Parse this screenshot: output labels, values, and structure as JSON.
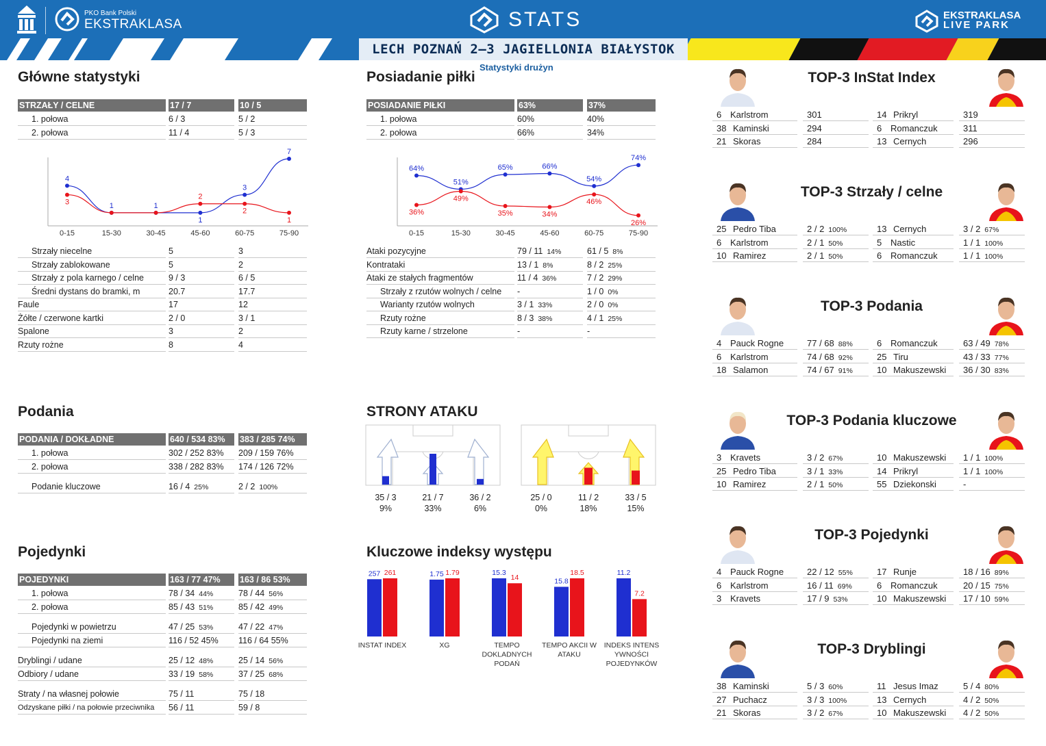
{
  "header": {
    "sponsor": "PKO Bank Polski",
    "league": "EKSTRAKLASA",
    "stats_title": "STATS",
    "liveparks_line1": "EKSTRAKLASA",
    "liveparks_line2": "LIVE PARK",
    "match": "LECH POZNAŃ 2–3 JAGIELLONIA BIAŁYSTOK",
    "subtitle": "Statystyki drużyn",
    "colors": {
      "home": "#1f2fd0",
      "away": "#e8141b",
      "brand": "#1c6fb8"
    }
  },
  "main_stats": {
    "title": "Główne statystyki",
    "header": [
      "STRZAŁY / CELNE",
      "17 / 7",
      "10 / 5"
    ],
    "halves": [
      [
        "1. połowa",
        "6 / 3",
        "5 / 2"
      ],
      [
        "2. połowa",
        "11 / 4",
        "5 / 3"
      ]
    ],
    "rows": [
      [
        "Strzały niecelne",
        "5",
        "3",
        true
      ],
      [
        "Strzały zablokowane",
        "5",
        "2",
        true
      ],
      [
        "Strzały z pola karnego / celne",
        "9 / 3",
        "6 / 5",
        true
      ],
      [
        "Średni dystans do bramki, m",
        "20.7",
        "17.7",
        true
      ],
      [
        "Faule",
        "17",
        "12",
        false
      ],
      [
        "Żółte / czerwone kartki",
        "2 / 0",
        "3 / 1",
        false
      ],
      [
        "Spalone",
        "3",
        "2",
        false
      ],
      [
        "Rzuty rożne",
        "8",
        "4",
        false
      ]
    ]
  },
  "possession": {
    "title": "Posiadanie piłki",
    "header": [
      "POSIADANIE PIŁKI",
      "63%",
      "37%"
    ],
    "halves": [
      [
        "1. połowa",
        "60%",
        "40%"
      ],
      [
        "2. połowa",
        "66%",
        "34%"
      ]
    ],
    "rows": [
      [
        "Ataki pozycyjne",
        "79 / 11",
        "14%",
        "61 / 5",
        "8%",
        false
      ],
      [
        "Kontrataki",
        "13 / 1",
        "8%",
        "8 / 2",
        "25%",
        false
      ],
      [
        "Ataki ze stałych fragmentów",
        "11 / 4",
        "36%",
        "7 / 2",
        "29%",
        false
      ],
      [
        "Strzały z rzutów wolnych / celne",
        "-",
        "",
        "1 / 0",
        "0%",
        true
      ],
      [
        "Warianty rzutów wolnych",
        "3 / 1",
        "33%",
        "2 / 0",
        "0%",
        true
      ],
      [
        "Rzuty rożne",
        "8 / 3",
        "38%",
        "4 / 1",
        "25%",
        true
      ],
      [
        "Rzuty karne / strzelone",
        "-",
        "",
        "-",
        "",
        true
      ]
    ]
  },
  "chart_data": [
    {
      "type": "line",
      "title": "",
      "categories": [
        "0-15",
        "15-30",
        "30-45",
        "45-60",
        "60-75",
        "75-90"
      ],
      "series": [
        {
          "values": [
            4,
            1,
            1,
            1,
            3,
            7
          ],
          "labels": [
            "4",
            "1",
            "1",
            "1",
            "3",
            "7"
          ],
          "color": "#1f2fd0"
        },
        {
          "values": [
            3,
            1,
            1,
            2,
            2,
            1
          ],
          "labels": [
            "3",
            "",
            "",
            "2",
            "2",
            "1"
          ],
          "color": "#e8141b"
        }
      ],
      "ylim": [
        0,
        7
      ]
    },
    {
      "type": "line",
      "title": "",
      "categories": [
        "0-15",
        "15-30",
        "30-45",
        "45-60",
        "60-75",
        "75-90"
      ],
      "series": [
        {
          "values": [
            64,
            51,
            65,
            66,
            54,
            74
          ],
          "labels": [
            "64%",
            "51%",
            "65%",
            "66%",
            "54%",
            "74%"
          ],
          "color": "#1f2fd0"
        },
        {
          "values": [
            36,
            49,
            35,
            34,
            46,
            26
          ],
          "labels": [
            "36%",
            "49%",
            "35%",
            "34%",
            "46%",
            "26%"
          ],
          "color": "#e8141b"
        }
      ],
      "ylim": [
        20,
        80
      ]
    },
    {
      "type": "bar",
      "title": "Kluczowe indeksy występu",
      "categories": [
        "INSTAT INDEX",
        "XG",
        "TEMPO DOKLADNYCH PODAŃ",
        "TEMPO AKCII W ATAKU",
        "INDEKS INTENSYWNOŚCI POJEDYNKÓW"
      ],
      "cat_lines": [
        [
          "INSTAT INDEX"
        ],
        [
          "XG"
        ],
        [
          "TEMPO",
          "DOKLADNYCH",
          "PODAŃ"
        ],
        [
          "TEMPO AKCII W",
          "ATAKU"
        ],
        [
          "INDEKS INTENS",
          "YWNOŚCI",
          "POJEDYNKÓW"
        ]
      ],
      "series": [
        {
          "values": [
            257,
            1.75,
            15.3,
            15.8,
            11.2
          ],
          "labels": [
            "257",
            "1.75",
            "15.3",
            "15.8",
            "11.2"
          ],
          "color": "#1f2fd0"
        },
        {
          "values": [
            261,
            1.79,
            14,
            18.5,
            7.2
          ],
          "labels": [
            "261",
            "1.79",
            "14",
            "18.5",
            "7.2"
          ],
          "color": "#e8141b"
        }
      ]
    },
    {
      "type": "bar",
      "title": "STRONY ATAKU",
      "categories": [
        "lewa",
        "środek",
        "prawa"
      ],
      "series": [
        {
          "values": [
            9,
            33,
            6
          ],
          "labels": [
            "35 / 3",
            "21 / 7",
            "36 / 2"
          ],
          "pct": [
            "9%",
            "33%",
            "6%"
          ],
          "color": "#1f2fd0"
        },
        {
          "values": [
            0,
            18,
            15
          ],
          "labels": [
            "25 / 0",
            "11 / 2",
            "33 / 5"
          ],
          "pct": [
            "0%",
            "18%",
            "15%"
          ],
          "color": "#e8141b"
        }
      ]
    }
  ],
  "passes": {
    "title": "Podania",
    "header": [
      "PODANIA / DOKŁADNE",
      "640 / 534 83%",
      "383 / 285 74%"
    ],
    "halves": [
      [
        "1. połowa",
        "302 / 252 83%",
        "209 / 159 76%"
      ],
      [
        "2. połowa",
        "338 / 282 83%",
        "174 / 126 72%"
      ]
    ],
    "key": [
      "Podanie kluczowe",
      "16 / 4",
      "25%",
      "2 / 2",
      "100%"
    ]
  },
  "duels": {
    "title": "Pojedynki",
    "header": [
      "POJEDYNKI",
      "163 / 77 47%",
      "163 / 86 53%"
    ],
    "halves": [
      [
        "1. połowa",
        "78 / 34",
        "44%",
        "78 / 44",
        "56%"
      ],
      [
        "2. połowa",
        "85 / 43",
        "51%",
        "85 / 42",
        "49%"
      ]
    ],
    "group1": [
      [
        "Pojedynki w powietrzu",
        "47 / 25",
        "53%",
        "47 / 22",
        "47%"
      ],
      [
        "Pojedynki na ziemi",
        "116 / 52 45%",
        "",
        "116 / 64 55%",
        ""
      ]
    ],
    "group2": [
      [
        "Dryblingi / udane",
        "25 / 12",
        "48%",
        "25 / 14",
        "56%"
      ],
      [
        "Odbiory / udane",
        "33 / 19",
        "58%",
        "37 / 25",
        "68%"
      ]
    ],
    "group3": [
      [
        "Straty / na własnej połowie",
        "75 / 11",
        "",
        "75 / 18",
        ""
      ],
      [
        "Odzyskane piłki / na połowie przeciwnika",
        "56 / 11",
        "",
        "59 / 8",
        ""
      ]
    ]
  },
  "tops": [
    {
      "title": "TOP-3 InStat Index",
      "rows": [
        [
          "6",
          "Karlstrom",
          "301",
          "",
          "14",
          "Prikryl",
          "319",
          ""
        ],
        [
          "38",
          "Kaminski",
          "294",
          "",
          "6",
          "Romanczuk",
          "311",
          ""
        ],
        [
          "21",
          "Skoras",
          "284",
          "",
          "13",
          "Cernych",
          "296",
          ""
        ]
      ]
    },
    {
      "title": "TOP-3 Strzały / celne",
      "rows": [
        [
          "25",
          "Pedro Tiba",
          "2 / 2",
          "100%",
          "13",
          "Cernych",
          "3 / 2",
          "67%"
        ],
        [
          "6",
          "Karlstrom",
          "2 / 1",
          "50%",
          "5",
          "Nastic",
          "1 / 1",
          "100%"
        ],
        [
          "10",
          "Ramirez",
          "2 / 1",
          "50%",
          "6",
          "Romanczuk",
          "1 / 1",
          "100%"
        ]
      ]
    },
    {
      "title": "TOP-3 Podania",
      "rows": [
        [
          "4",
          "Pauck Rogne",
          "77 / 68",
          "88%",
          "6",
          "Romanczuk",
          "63 / 49",
          "78%"
        ],
        [
          "6",
          "Karlstrom",
          "74 / 68",
          "92%",
          "25",
          "Tiru",
          "43 / 33",
          "77%"
        ],
        [
          "18",
          "Salamon",
          "74 / 67",
          "91%",
          "10",
          "Makuszewski",
          "36 / 30",
          "83%"
        ]
      ]
    },
    {
      "title": "TOP-3 Podania kluczowe",
      "rows": [
        [
          "3",
          "Kravets",
          "3 / 2",
          "67%",
          "10",
          "Makuszewski",
          "1 / 1",
          "100%"
        ],
        [
          "25",
          "Pedro Tiba",
          "3 / 1",
          "33%",
          "14",
          "Prikryl",
          "1 / 1",
          "100%"
        ],
        [
          "10",
          "Ramirez",
          "2 / 1",
          "50%",
          "55",
          "Dziekonski",
          "-",
          ""
        ]
      ]
    },
    {
      "title": "TOP-3 Pojedynki",
      "rows": [
        [
          "4",
          "Pauck Rogne",
          "22 / 12",
          "55%",
          "17",
          "Runje",
          "18 / 16",
          "89%"
        ],
        [
          "6",
          "Karlstrom",
          "16 / 11",
          "69%",
          "6",
          "Romanczuk",
          "20 / 15",
          "75%"
        ],
        [
          "3",
          "Kravets",
          "17 / 9",
          "53%",
          "10",
          "Makuszewski",
          "17 / 10",
          "59%"
        ]
      ]
    },
    {
      "title": "TOP-3 Dryblingi",
      "rows": [
        [
          "38",
          "Kaminski",
          "5 / 3",
          "60%",
          "11",
          "Jesus Imaz",
          "5 / 4",
          "80%"
        ],
        [
          "27",
          "Puchacz",
          "3 / 3",
          "100%",
          "13",
          "Cernych",
          "4 / 2",
          "50%"
        ],
        [
          "21",
          "Skoras",
          "3 / 2",
          "67%",
          "10",
          "Makuszewski",
          "4 / 2",
          "50%"
        ]
      ]
    }
  ]
}
